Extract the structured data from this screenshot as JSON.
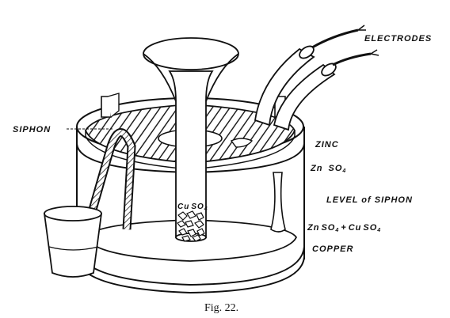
{
  "labels": {
    "electrodes": "ELECTRODES",
    "siphon": "SIPHON",
    "zinc": "ZINC",
    "zn_so4_zn": "Zn",
    "zn_so4_so": "SO",
    "zn_so4_4": "4",
    "level": "LEVEL of SIPHON",
    "mix_zn": "Zn",
    "mix_so": "SO",
    "mix_4a": "4",
    "mix_plus": "+",
    "mix_cu": "Cu",
    "mix_so2": "SO",
    "mix_4b": "4",
    "copper": "COPPER",
    "inner_cu": "Cu",
    "inner_so": "SO",
    "inner_4": "4"
  },
  "caption": "Fig. 22."
}
